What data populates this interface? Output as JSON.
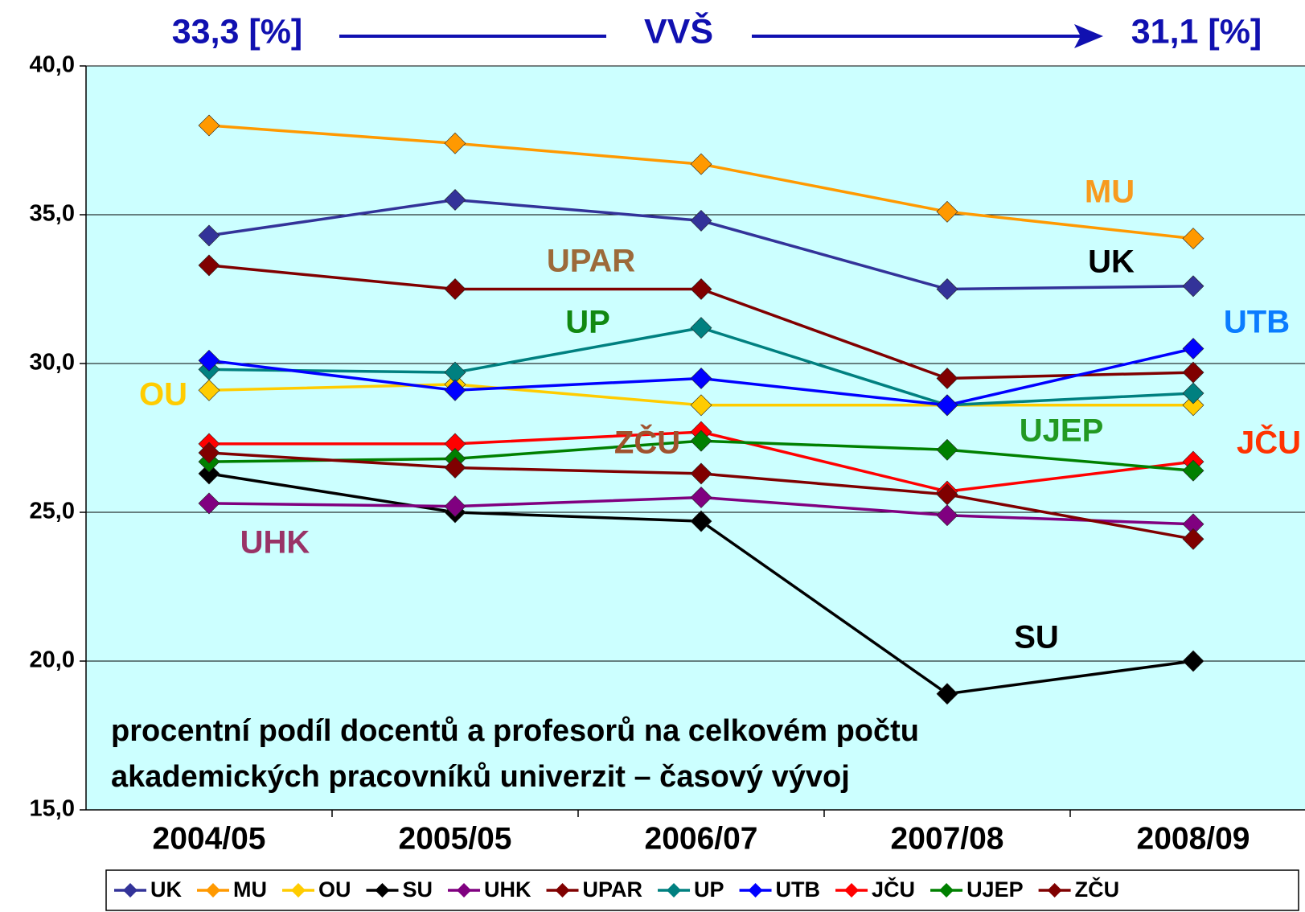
{
  "chart_data": {
    "type": "line",
    "header": {
      "left": "33,3 [%]",
      "center": "VVŠ",
      "right": "31,1 [%]",
      "color": "#1010b0"
    },
    "subtitle": [
      "procentní podíl docentů a profesorů na celkovém počtu",
      "akademických pracovníků univerzit – časový vývoj"
    ],
    "categories": [
      "2004/05",
      "2005/05",
      "2006/07",
      "2007/08",
      "2008/09"
    ],
    "ylim": [
      15,
      40
    ],
    "yticks": [
      {
        "value": 15,
        "label": "15,0"
      },
      {
        "value": 20,
        "label": "20,0"
      },
      {
        "value": 25,
        "label": "25,0"
      },
      {
        "value": 30,
        "label": "30,0"
      },
      {
        "value": 35,
        "label": "35,0"
      },
      {
        "value": 40,
        "label": "40,0"
      }
    ],
    "grid": true,
    "background": "#ccffff",
    "legend": "bottom",
    "series": [
      {
        "name": "UK",
        "color": "#333399",
        "values": [
          34.3,
          35.5,
          34.8,
          32.5,
          32.6
        ]
      },
      {
        "name": "MU",
        "color": "#ff9900",
        "values": [
          38.0,
          37.4,
          36.7,
          35.1,
          34.2
        ]
      },
      {
        "name": "OU",
        "color": "#ffcc00",
        "values": [
          29.1,
          29.3,
          28.6,
          28.6,
          28.6
        ]
      },
      {
        "name": "SU",
        "color": "#000000",
        "values": [
          26.3,
          25.0,
          24.7,
          18.9,
          20.0
        ]
      },
      {
        "name": "UHK",
        "color": "#800080",
        "values": [
          25.3,
          25.2,
          25.5,
          24.9,
          24.6
        ]
      },
      {
        "name": "UPAR",
        "color": "#800000",
        "values": [
          33.3,
          32.5,
          32.5,
          29.5,
          29.7
        ]
      },
      {
        "name": "UP",
        "color": "#008080",
        "values": [
          29.8,
          29.7,
          31.2,
          28.6,
          29.0
        ]
      },
      {
        "name": "UTB",
        "color": "#0000ff",
        "values": [
          30.1,
          29.1,
          29.5,
          28.6,
          30.5
        ]
      },
      {
        "name": "JČU",
        "color": "#ff0000",
        "values": [
          27.3,
          27.3,
          27.7,
          25.7,
          26.7
        ]
      },
      {
        "name": "UJEP",
        "color": "#008000",
        "values": [
          26.7,
          26.8,
          27.4,
          27.1,
          26.4
        ]
      },
      {
        "name": "ZČU",
        "color": "#800000",
        "values": [
          27.0,
          26.5,
          26.3,
          25.6,
          24.1
        ]
      }
    ],
    "annotations": [
      {
        "text": "MU",
        "color": "#f79a1e"
      },
      {
        "text": "UK",
        "color": "#000000"
      },
      {
        "text": "UPAR",
        "color": "#9c6a3a"
      },
      {
        "text": "UP",
        "color": "#118811"
      },
      {
        "text": "UTB",
        "color": "#0a7cff"
      },
      {
        "text": "OU",
        "color": "#ffcc00"
      },
      {
        "text": "UJEP",
        "color": "#229922"
      },
      {
        "text": "JČU",
        "color": "#ff3300"
      },
      {
        "text": "ZČU",
        "color": "#a0522d"
      },
      {
        "text": "UHK",
        "color": "#993366"
      },
      {
        "text": "SU",
        "color": "#000000"
      }
    ]
  }
}
